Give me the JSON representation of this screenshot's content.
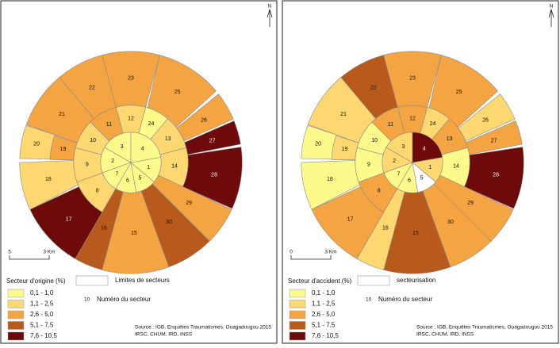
{
  "class_colors": [
    "#fdfa8c",
    "#fdd870",
    "#f5a442",
    "#b85a1c",
    "#6e0a0a"
  ],
  "maps": [
    {
      "north": "N",
      "legend_title": "Secteur d'origine (%)",
      "classes": [
        "0,1 - 1,0",
        "1,1 - 2,5",
        "2,6 - 5,0",
        "5,1 - 7,5",
        "7,6 - 10,5"
      ],
      "boundary_label": "Limites de secteurs",
      "number_symbol": "10",
      "number_label": "Numéro du secteur",
      "scale_start": "5",
      "scale_end": "3 Km",
      "source": [
        "Source : IGB, Enquêtes Traumatismes, Ouagadougou 2015",
        "IRSC, CHUM, IRD, INSS"
      ],
      "sectors": [
        {
          "label": "1",
          "class": 0
        },
        {
          "label": "2",
          "class": 0
        },
        {
          "label": "3",
          "class": 0
        },
        {
          "label": "4",
          "class": 0
        },
        {
          "label": "5",
          "class": 0
        },
        {
          "label": "6",
          "class": 0
        },
        {
          "label": "7",
          "class": 0
        },
        {
          "label": "8",
          "class": 1
        },
        {
          "label": "9",
          "class": 1
        },
        {
          "label": "10",
          "class": 1
        },
        {
          "label": "11",
          "class": 2
        },
        {
          "label": "12",
          "class": 1
        },
        {
          "label": "13",
          "class": 1
        },
        {
          "label": "14",
          "class": 1
        },
        {
          "label": "15",
          "class": 2
        },
        {
          "label": "16",
          "class": 3
        },
        {
          "label": "17",
          "class": 4
        },
        {
          "label": "18",
          "class": 1
        },
        {
          "label": "19",
          "class": 2
        },
        {
          "label": "20",
          "class": 1
        },
        {
          "label": "21",
          "class": 2
        },
        {
          "label": "22",
          "class": 2
        },
        {
          "label": "23",
          "class": 2
        },
        {
          "label": "24",
          "class": 0
        },
        {
          "label": "25",
          "class": 2
        },
        {
          "label": "26",
          "class": 2
        },
        {
          "label": "27",
          "class": 4
        },
        {
          "label": "28",
          "class": 4
        },
        {
          "label": "29",
          "class": 2
        },
        {
          "label": "30",
          "class": 3
        }
      ]
    },
    {
      "north": "N",
      "legend_title": "Secteur d'accident (%)",
      "classes": [
        "0,1 - 1,0",
        "1,1 - 2,5",
        "2,6 - 5,0",
        "5,1 - 7,5",
        "7,6 - 10,5"
      ],
      "boundary_label": "secteurisation",
      "number_symbol": "10",
      "number_label": "Numéro du secteur",
      "scale_start": "0",
      "scale_end": "3 Km",
      "source": [
        "Source : IGB, Enquêtes Traumatismes, Ouagadougou 2015",
        "IRSC, CHUM, IRD, INSS"
      ],
      "sectors": [
        {
          "label": "1",
          "class": 1
        },
        {
          "label": "2",
          "class": 1
        },
        {
          "label": "3",
          "class": 1
        },
        {
          "label": "4",
          "class": 4
        },
        {
          "label": "5",
          "class": null
        },
        {
          "label": "6",
          "class": 0
        },
        {
          "label": "7",
          "class": 0
        },
        {
          "label": "8",
          "class": 2
        },
        {
          "label": "9",
          "class": 0
        },
        {
          "label": "10",
          "class": 0
        },
        {
          "label": "11",
          "class": 2
        },
        {
          "label": "12",
          "class": 2
        },
        {
          "label": "13",
          "class": 2
        },
        {
          "label": "14",
          "class": 0
        },
        {
          "label": "15",
          "class": 3
        },
        {
          "label": "16",
          "class": 1
        },
        {
          "label": "17",
          "class": 2
        },
        {
          "label": "18",
          "class": 0
        },
        {
          "label": "19",
          "class": 1
        },
        {
          "label": "20",
          "class": 0
        },
        {
          "label": "21",
          "class": 1
        },
        {
          "label": "22",
          "class": 3
        },
        {
          "label": "23",
          "class": 2
        },
        {
          "label": "24",
          "class": 1
        },
        {
          "label": "25",
          "class": 2
        },
        {
          "label": "26",
          "class": 1
        },
        {
          "label": "27",
          "class": 2
        },
        {
          "label": "28",
          "class": 4
        },
        {
          "label": "29",
          "class": 2
        },
        {
          "label": "30",
          "class": 2
        }
      ]
    }
  ]
}
